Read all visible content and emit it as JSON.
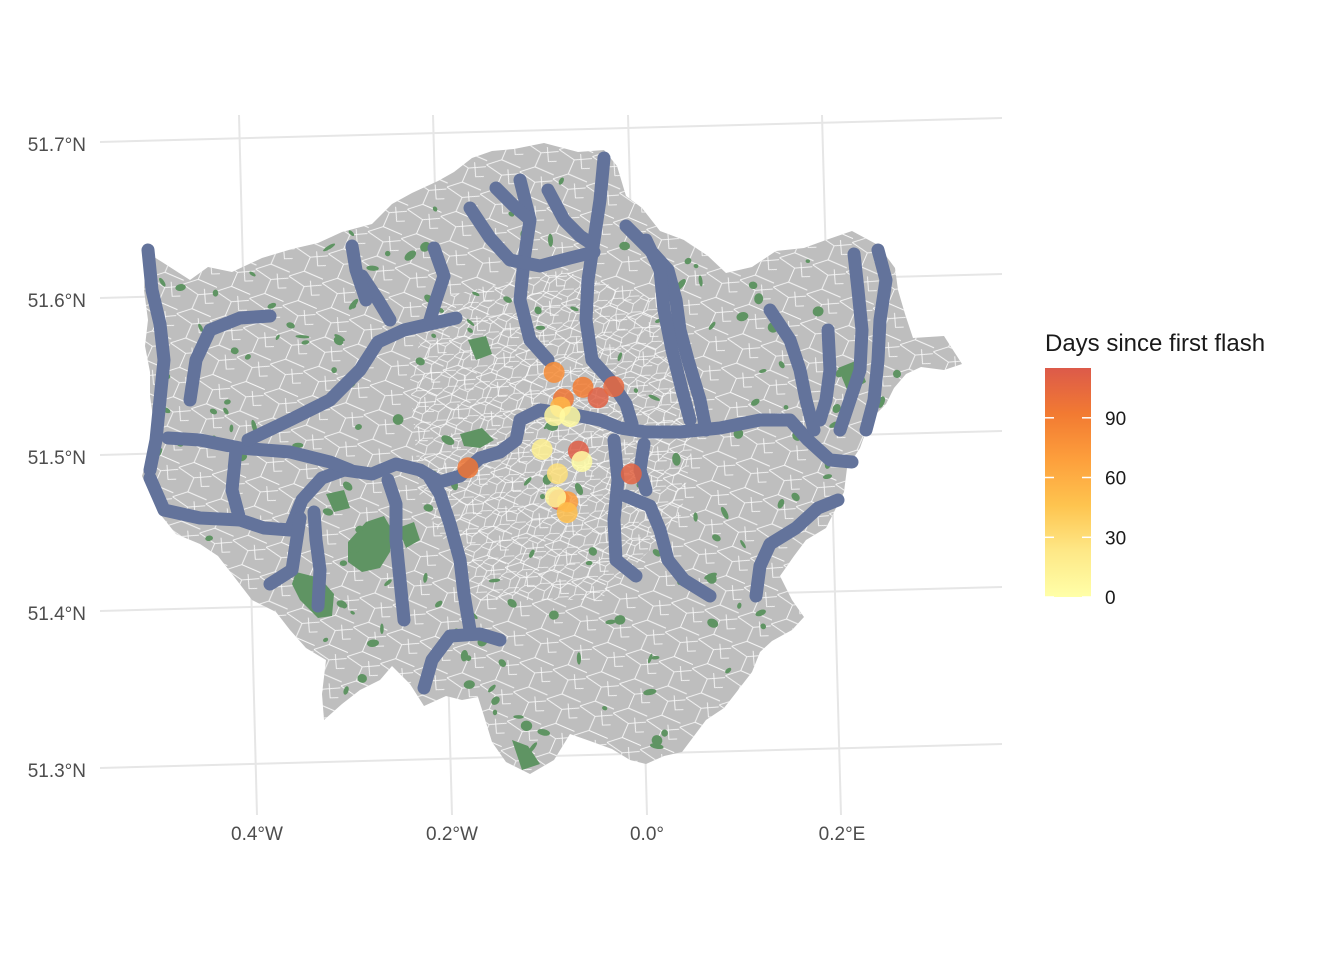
{
  "chart_data": {
    "type": "map",
    "region": "Greater London",
    "axes": {
      "y_tick_labels": [
        "51.7°N",
        "51.6°N",
        "51.5°N",
        "51.4°N",
        "51.3°N"
      ],
      "x_tick_labels": [
        "0.4°W",
        "0.2°W",
        "0.0°",
        "0.2°E"
      ],
      "lat_ticks": [
        51.7,
        51.6,
        51.5,
        51.4,
        51.3
      ],
      "lon_ticks": [
        -0.4,
        -0.2,
        0.0,
        0.2
      ],
      "lon_range": [
        -0.52,
        0.36
      ],
      "lat_range": [
        51.28,
        51.72
      ],
      "grid": true
    },
    "legend": {
      "title": "Days since first flash",
      "placement": "right",
      "ticks": [
        90,
        60,
        30,
        0
      ],
      "tick_labels": [
        "90",
        "60",
        "30",
        "0"
      ],
      "range": [
        0,
        115
      ],
      "colors": [
        "#ffffa8",
        "#fee887",
        "#fec44f",
        "#fd9f3c",
        "#f27a32",
        "#e8604a",
        "#dc5a4a"
      ]
    },
    "layers": {
      "boroughs": {
        "fill": "#bebebe",
        "border": "#ffffff"
      },
      "green_space": {
        "fill": "#5f9463"
      },
      "rivers": {
        "stroke": "#63739b"
      }
    },
    "points": [
      {
        "lon": -0.107,
        "lat": 51.561,
        "days": 80
      },
      {
        "lon": -0.094,
        "lat": 51.543,
        "days": 95
      },
      {
        "lon": -0.075,
        "lat": 51.549,
        "days": 90
      },
      {
        "lon": -0.058,
        "lat": 51.541,
        "days": 110
      },
      {
        "lon": -0.043,
        "lat": 51.547,
        "days": 105
      },
      {
        "lon": -0.096,
        "lat": 51.538,
        "days": 55
      },
      {
        "lon": -0.101,
        "lat": 51.533,
        "days": 8
      },
      {
        "lon": -0.085,
        "lat": 51.531,
        "days": 5
      },
      {
        "lon": -0.185,
        "lat": 51.506,
        "days": 95
      },
      {
        "lon": -0.11,
        "lat": 51.512,
        "days": 15
      },
      {
        "lon": -0.072,
        "lat": 51.508,
        "days": 112
      },
      {
        "lon": -0.067,
        "lat": 51.501,
        "days": 3
      },
      {
        "lon": -0.091,
        "lat": 51.495,
        "days": 28
      },
      {
        "lon": -0.014,
        "lat": 51.489,
        "days": 108
      },
      {
        "lon": -0.086,
        "lat": 51.478,
        "days": 112
      },
      {
        "lon": -0.077,
        "lat": 51.476,
        "days": 70
      },
      {
        "lon": -0.09,
        "lat": 51.48,
        "days": 10
      },
      {
        "lon": -0.076,
        "lat": 51.469,
        "days": 50
      }
    ]
  }
}
